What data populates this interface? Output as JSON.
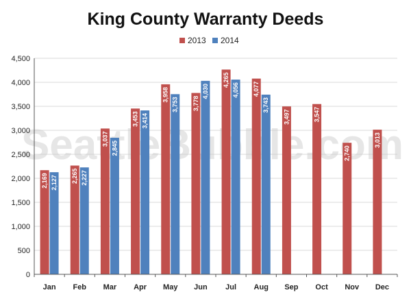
{
  "chart_data": {
    "type": "bar",
    "title": "King County Warranty Deeds",
    "xlabel": "",
    "ylabel": "",
    "ylim": [
      0,
      4500
    ],
    "yticks": [
      0,
      500,
      1000,
      1500,
      2000,
      2500,
      3000,
      3500,
      4000,
      4500
    ],
    "ytick_labels": [
      "0",
      "500",
      "1,000",
      "1,500",
      "2,000",
      "2,500",
      "3,000",
      "3,500",
      "4,000",
      "4,500"
    ],
    "grid": true,
    "legend_position": "top-center",
    "categories": [
      "Jan",
      "Feb",
      "Mar",
      "Apr",
      "May",
      "Jun",
      "Jul",
      "Aug",
      "Sep",
      "Oct",
      "Nov",
      "Dec"
    ],
    "series": [
      {
        "name": "2013",
        "color": "#c0504d",
        "values": [
          2169,
          2265,
          3037,
          3453,
          3958,
          3778,
          4265,
          4077,
          3497,
          3547,
          2740,
          3013
        ],
        "labels": [
          "2,169",
          "2,265",
          "3,037",
          "3,453",
          "3,958",
          "3,778",
          "4,265",
          "4,077",
          "3,497",
          "3,547",
          "2,740",
          "3,013"
        ]
      },
      {
        "name": "2014",
        "color": "#4f81bd",
        "values": [
          2127,
          2227,
          2845,
          3414,
          3753,
          4030,
          4056,
          3743,
          null,
          null,
          null,
          null
        ],
        "labels": [
          "2,127",
          "2,227",
          "2,845",
          "3,414",
          "3,753",
          "4,030",
          "4,056",
          "3,743",
          "",
          "",
          "",
          ""
        ]
      }
    ],
    "watermark": "SeattleBubble.com"
  }
}
